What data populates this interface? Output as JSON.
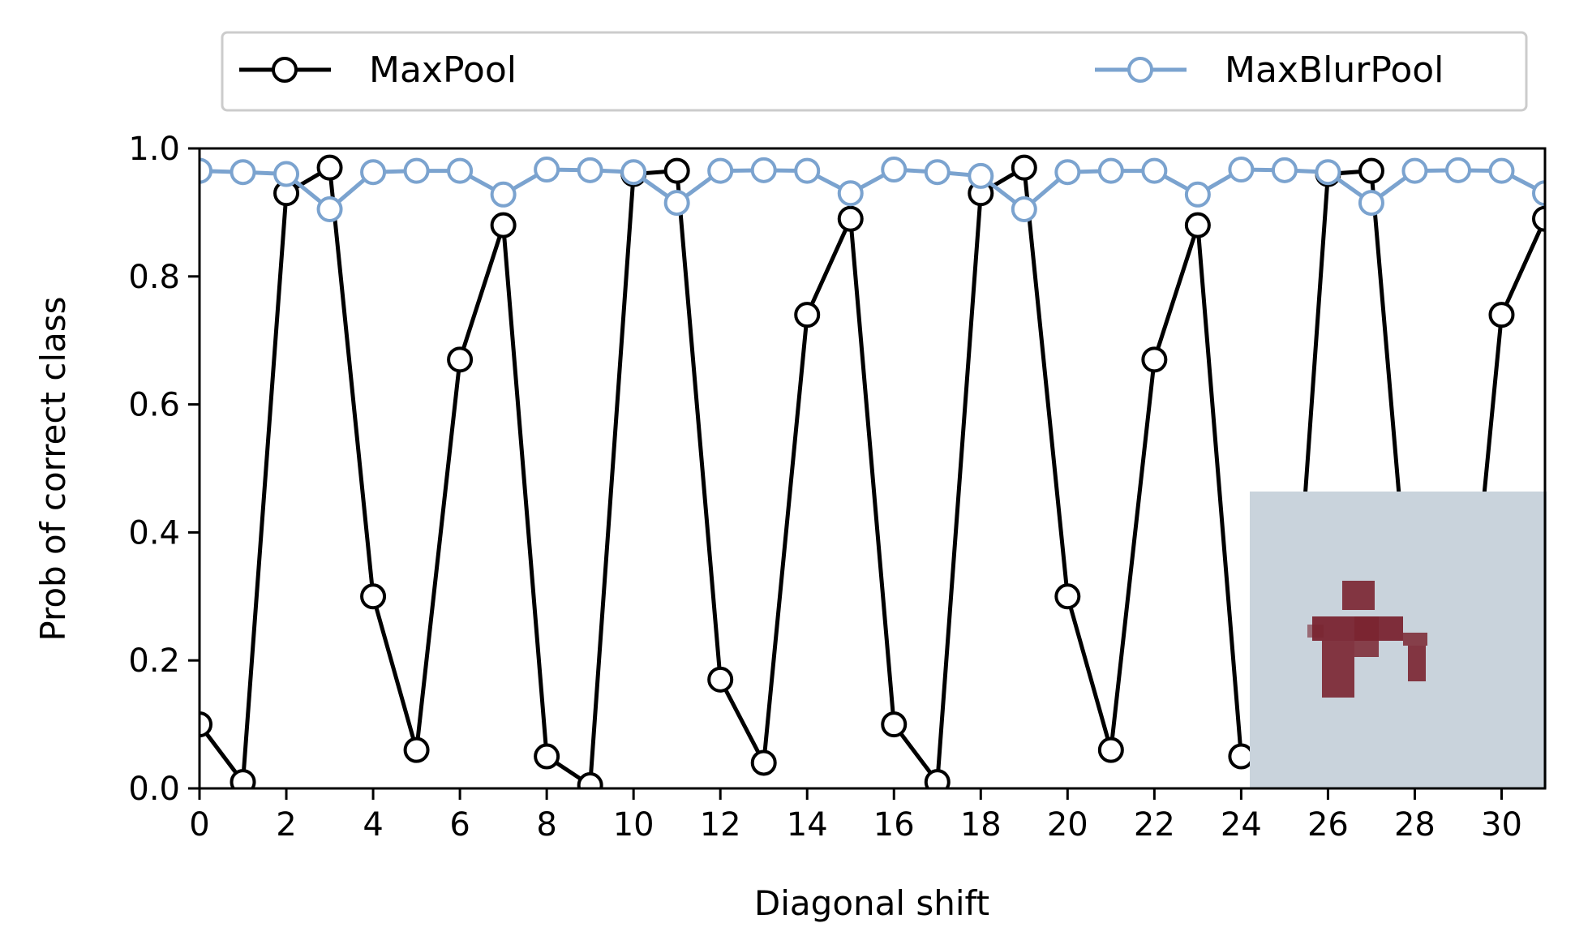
{
  "chart_data": {
    "type": "line",
    "xlabel": "Diagonal shift",
    "ylabel": "Prob of correct class",
    "xlim": [
      0,
      31
    ],
    "ylim": [
      0.0,
      1.0
    ],
    "x_ticks": [
      0,
      2,
      4,
      6,
      8,
      10,
      12,
      14,
      16,
      18,
      20,
      22,
      24,
      26,
      28,
      30
    ],
    "y_ticks": [
      "0.0",
      "0.2",
      "0.4",
      "0.6",
      "0.8",
      "1.0"
    ],
    "grid": false,
    "legend_position": "top, above plot",
    "x": [
      0,
      1,
      2,
      3,
      4,
      5,
      6,
      7,
      8,
      9,
      10,
      11,
      12,
      13,
      14,
      15,
      16,
      17,
      18,
      19,
      20,
      21,
      22,
      23,
      24,
      25,
      26,
      27,
      28,
      29,
      30,
      31
    ],
    "series": [
      {
        "name": "MaxPool",
        "color": "#000000",
        "marker": "open-circle",
        "values": [
          0.1,
          0.01,
          0.93,
          0.97,
          0.3,
          0.06,
          0.67,
          0.88,
          0.05,
          0.005,
          0.96,
          0.965,
          0.17,
          0.04,
          0.74,
          0.89,
          0.1,
          0.01,
          0.93,
          0.97,
          0.3,
          0.06,
          0.67,
          0.88,
          0.05,
          0.005,
          0.96,
          0.965,
          0.17,
          0.04,
          0.74,
          0.89
        ]
      },
      {
        "name": "MaxBlurPool",
        "color": "#7ba3cf",
        "marker": "open-circle",
        "values": [
          0.965,
          0.963,
          0.96,
          0.905,
          0.963,
          0.965,
          0.965,
          0.928,
          0.967,
          0.966,
          0.963,
          0.915,
          0.965,
          0.966,
          0.965,
          0.93,
          0.967,
          0.963,
          0.957,
          0.905,
          0.963,
          0.965,
          0.965,
          0.928,
          0.967,
          0.966,
          0.963,
          0.915,
          0.965,
          0.966,
          0.965,
          0.93
        ]
      }
    ],
    "inset": {
      "kind": "image",
      "description_icon": "airplane-thumbnail-icon",
      "background_color": "#c9d3dc",
      "object_color": "#7a2430"
    }
  }
}
